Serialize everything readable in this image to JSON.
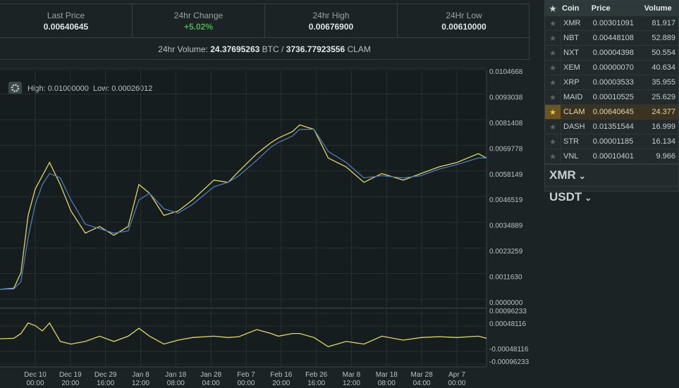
{
  "stats": [
    {
      "label": "Last Price",
      "value": "0.00640645"
    },
    {
      "label": "24hr Change",
      "value": "+5.02%"
    },
    {
      "label": "24hr High",
      "value": "0.00676900"
    },
    {
      "label": "24Hr Low",
      "value": "0.00610000"
    }
  ],
  "volume": {
    "prefix": "24hr Volume:",
    "btc": "24.37695263",
    "btc_unit": "BTC",
    "sep": "/",
    "clam": "3736.77923556",
    "clam_unit": "CLAM"
  },
  "chart_info": {
    "high": "High: 0.01000000",
    "low": "Low: 0.00026012"
  },
  "chart_data": [
    {
      "type": "line",
      "x": [
        -9.87,
        -6,
        -4,
        -2,
        0,
        2,
        4,
        7,
        10,
        14,
        18,
        22,
        26,
        29,
        32,
        36,
        40,
        44,
        50,
        54,
        57,
        62,
        66,
        68,
        72,
        74,
        78,
        82,
        87,
        92,
        97,
        103,
        108,
        113,
        118,
        124,
        126.3
      ],
      "series": [
        {
          "color": "#e2d75c",
          "values": [
            0.00045,
            0.0005,
            0.0012,
            0.0038,
            0.005,
            0.0056,
            0.0062,
            0.0052,
            0.004,
            0.003,
            0.0033,
            0.0029,
            0.0033,
            0.0052,
            0.0048,
            0.0038,
            0.004,
            0.0045,
            0.0054,
            0.0053,
            0.0058,
            0.0066,
            0.0071,
            0.0073,
            0.0076,
            0.0079,
            0.0077,
            0.0064,
            0.006,
            0.0053,
            0.0057,
            0.0054,
            0.0057,
            0.006,
            0.0062,
            0.0066,
            0.0064
          ]
        },
        {
          "color": "#4f79b8",
          "values": [
            0.00045,
            0.00047,
            0.0008,
            0.0028,
            0.0043,
            0.0052,
            0.0057,
            0.0055,
            0.0045,
            0.0034,
            0.0032,
            0.003,
            0.0031,
            0.0045,
            0.0048,
            0.0041,
            0.0039,
            0.0043,
            0.0051,
            0.0053,
            0.0056,
            0.0063,
            0.0069,
            0.0071,
            0.0074,
            0.0077,
            0.0077,
            0.0067,
            0.0062,
            0.0055,
            0.0056,
            0.0055,
            0.0056,
            0.0059,
            0.0061,
            0.0064,
            0.0064
          ]
        }
      ],
      "xlim": [
        -9.87,
        126.3
      ],
      "xticks": [
        {
          "value": 0,
          "date": "Dec 10",
          "time": "00:00"
        },
        {
          "value": 9.833,
          "date": "Dec 19",
          "time": "20:00"
        },
        {
          "value": 19.667,
          "date": "Dec 29",
          "time": "16:00"
        },
        {
          "value": 29.5,
          "date": "Jan 8",
          "time": "12:00"
        },
        {
          "value": 39.333,
          "date": "Jan 18",
          "time": "08:00"
        },
        {
          "value": 49.167,
          "date": "Jan 28",
          "time": "04:00"
        },
        {
          "value": 59,
          "date": "Feb 7",
          "time": "00:00"
        },
        {
          "value": 68.833,
          "date": "Feb 16",
          "time": "20:00"
        },
        {
          "value": 78.667,
          "date": "Feb 26",
          "time": "16:00"
        },
        {
          "value": 88.5,
          "date": "Mar 8",
          "time": "12:00"
        },
        {
          "value": 98.333,
          "date": "Mar 18",
          "time": "08:00"
        },
        {
          "value": 108.167,
          "date": "Mar 28",
          "time": "04:00"
        },
        {
          "value": 118,
          "date": "Apr 7",
          "time": "00:00"
        }
      ],
      "ylim": [
        0,
        0.0104668
      ],
      "yticks": [
        0.0104668,
        0.0093038,
        0.0081408,
        0.0069778,
        0.0058149,
        0.0046519,
        0.0034889,
        0.0023259,
        {
          "value": 0.001163,
          "label": "0.0011630"
        },
        {
          "value": 0,
          "label": "0.0000000"
        }
      ],
      "grid": true
    },
    {
      "type": "line",
      "x": [
        -9.87,
        -6,
        -4,
        -2,
        0,
        2,
        4,
        7,
        10,
        14,
        18,
        22,
        26,
        29,
        32,
        36,
        40,
        44,
        50,
        54,
        57,
        62,
        66,
        68,
        72,
        74,
        78,
        82,
        87,
        92,
        97,
        103,
        108,
        113,
        118,
        124,
        126.3
      ],
      "series": [
        {
          "color": "#e2d75c",
          "values": [
            0,
            2e-05,
            0.0002,
            0.0006,
            0.0005,
            0.0003,
            0.0006,
            -0.0001,
            -0.0002,
            -0.0001,
            0.0001,
            -0.0001,
            0.0001,
            0.0004,
            0.0001,
            -0.0002,
            -5e-05,
            5e-05,
            0.0001,
            5e-05,
            8e-05,
            0.00035,
            0.0002,
            0.0001,
            0.0002,
            0.0002,
            5e-05,
            -0.0003,
            -0.0001,
            -0.0002,
            0.0001,
            -5e-05,
            5e-05,
            8e-05,
            5e-05,
            0.0001,
            2e-05
          ]
        }
      ],
      "xlim": [
        -9.87,
        126.3
      ],
      "ylim": [
        -0.00104,
        0.0011
      ],
      "yticks": [
        0.00096233,
        0.00048116,
        -0.00048116,
        -0.00096233
      ],
      "grid": true
    }
  ],
  "market_table": {
    "headers": [
      "Coin",
      "Price",
      "Volume"
    ],
    "rows": [
      [
        "XMR",
        "0.00301091",
        "81.917"
      ],
      [
        "NBT",
        "0.00448108",
        "52.889"
      ],
      [
        "NXT",
        "0.00004398",
        "50.554"
      ],
      [
        "XEM",
        "0.00000070",
        "40.634"
      ],
      [
        "XRP",
        "0.00003533",
        "35.955"
      ],
      [
        "MAID",
        "0.00010525",
        "25.629"
      ],
      [
        "CLAM",
        "0.00640645",
        "24.377"
      ],
      [
        "DASH",
        "0.01351544",
        "16.999"
      ],
      [
        "STR",
        "0.00001185",
        "16.134"
      ],
      [
        "VNL",
        "0.00010401",
        "9.966"
      ]
    ]
  },
  "markets": [
    "XMR",
    "USDT"
  ]
}
